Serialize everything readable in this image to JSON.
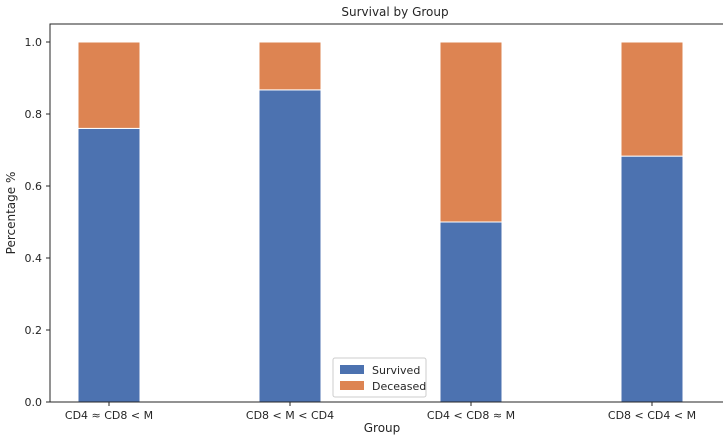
{
  "chart_data": {
    "type": "bar",
    "stacked": true,
    "title": "Survival by Group",
    "xlabel": "Group",
    "ylabel": "Percentage %",
    "categories": [
      "CD4 ≈ CD8 < M",
      "CD8 < M < CD4",
      "CD4 < CD8 ≈ M",
      "CD8 < CD4 < M"
    ],
    "series": [
      {
        "name": "Survived",
        "color": "#4c72b0",
        "values": [
          0.76,
          0.867,
          0.5,
          0.683
        ]
      },
      {
        "name": "Deceased",
        "color": "#dd8452",
        "values": [
          0.24,
          0.133,
          0.5,
          0.317
        ]
      }
    ],
    "ylim": [
      0,
      1.05
    ],
    "yticks": [
      "0.0",
      "0.2",
      "0.4",
      "0.6",
      "0.8",
      "1.0"
    ],
    "ytick_values": [
      0,
      0.2,
      0.4,
      0.6,
      0.8,
      1.0
    ],
    "grid": false,
    "legend_position": "bottom-center"
  }
}
